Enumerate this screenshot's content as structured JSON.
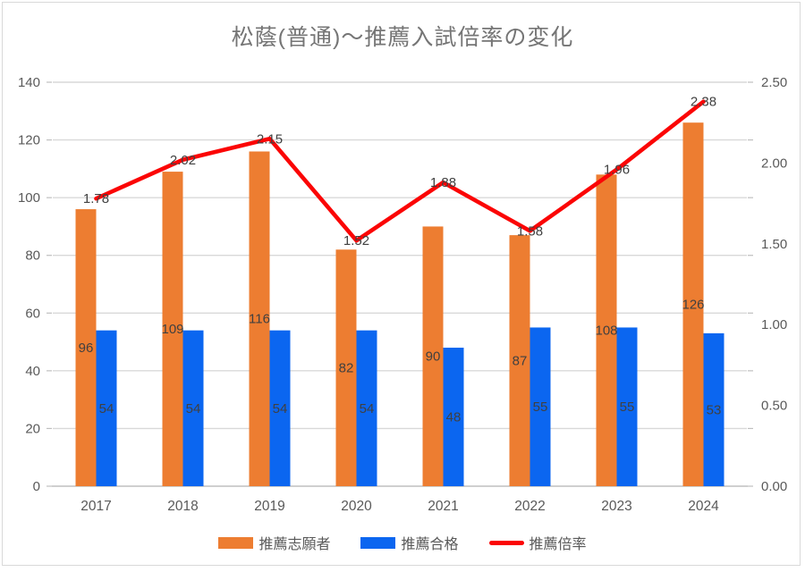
{
  "title": "松蔭(普通)～推薦入試倍率の変化",
  "colors": {
    "background": "#FFFFFF",
    "border": "#D9D9D9",
    "grid": "#D9D9D9",
    "axis_line": "#BFBFBF",
    "tick": "#BFBFBF",
    "title": "#757575",
    "axis_labels": "#595959",
    "data_labels": "#404040"
  },
  "chart_data": {
    "type": "bar",
    "subtype": "combo-bar-line",
    "title": "松蔭(普通)～推薦入試倍率の変化",
    "categories": [
      "2017",
      "2018",
      "2019",
      "2020",
      "2021",
      "2022",
      "2023",
      "2024"
    ],
    "series": [
      {
        "name": "推薦志願者",
        "type": "bar",
        "axis": "left",
        "color": "#ED7D31",
        "values": [
          96,
          109,
          116,
          82,
          90,
          87,
          108,
          126
        ]
      },
      {
        "name": "推薦合格",
        "type": "bar",
        "axis": "left",
        "color": "#0B66F0",
        "values": [
          54,
          54,
          54,
          54,
          48,
          55,
          55,
          53
        ]
      },
      {
        "name": "推薦倍率",
        "type": "line",
        "axis": "right",
        "color": "#FB0505",
        "values": [
          1.78,
          2.02,
          2.15,
          1.52,
          1.88,
          1.58,
          1.96,
          2.38
        ]
      }
    ],
    "left_axis": {
      "min": 0,
      "max": 140,
      "step": 20,
      "ticks": [
        "0",
        "20",
        "40",
        "60",
        "80",
        "100",
        "120",
        "140"
      ]
    },
    "right_axis": {
      "min": 0,
      "max": 2.5,
      "step": 0.5,
      "ticks": [
        "0.00",
        "0.50",
        "1.00",
        "1.50",
        "2.00",
        "2.50"
      ]
    },
    "grid": true,
    "legend_position": "bottom",
    "xlabel": "",
    "ylabel": ""
  }
}
